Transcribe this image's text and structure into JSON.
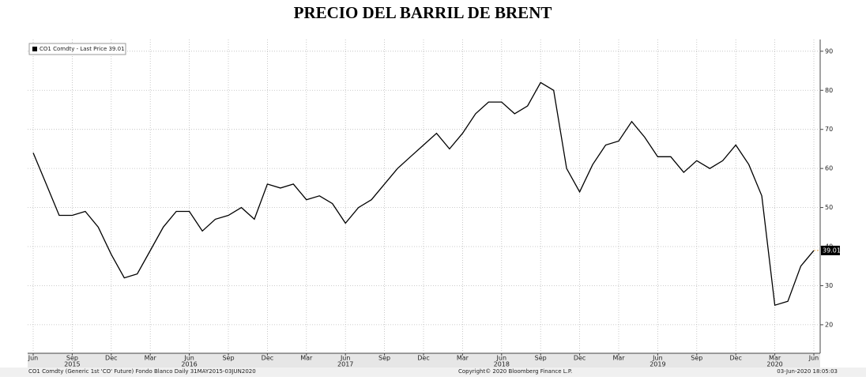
{
  "chart_data": {
    "type": "line",
    "title": "PRECIO DEL BARRIL DE BRENT",
    "x": [
      "2015-06",
      "2015-07",
      "2015-08",
      "2015-09",
      "2015-10",
      "2015-11",
      "2015-12",
      "2016-01",
      "2016-02",
      "2016-03",
      "2016-04",
      "2016-05",
      "2016-06",
      "2016-07",
      "2016-08",
      "2016-09",
      "2016-10",
      "2016-11",
      "2016-12",
      "2017-01",
      "2017-02",
      "2017-03",
      "2017-04",
      "2017-05",
      "2017-06",
      "2017-07",
      "2017-08",
      "2017-09",
      "2017-10",
      "2017-11",
      "2017-12",
      "2018-01",
      "2018-02",
      "2018-03",
      "2018-04",
      "2018-05",
      "2018-06",
      "2018-07",
      "2018-08",
      "2018-09",
      "2018-10",
      "2018-11",
      "2018-12",
      "2019-01",
      "2019-02",
      "2019-03",
      "2019-04",
      "2019-05",
      "2019-06",
      "2019-07",
      "2019-08",
      "2019-09",
      "2019-10",
      "2019-11",
      "2019-12",
      "2020-01",
      "2020-02",
      "2020-03",
      "2020-04",
      "2020-05",
      "2020-06"
    ],
    "series": [
      {
        "name": "CO1 Comdty - Last Price 39.01",
        "color": "#000000",
        "values": [
          64,
          56,
          48,
          48,
          49,
          45,
          38,
          32,
          33,
          39,
          45,
          49,
          49,
          44,
          47,
          48,
          50,
          47,
          56,
          55,
          56,
          52,
          53,
          51,
          46,
          50,
          52,
          56,
          60,
          63,
          66,
          69,
          65,
          69,
          74,
          77,
          77,
          74,
          76,
          82,
          80,
          60,
          54,
          61,
          66,
          67,
          72,
          68,
          63,
          63,
          59,
          62,
          60,
          62,
          66,
          61,
          53,
          25,
          26,
          35,
          39.01
        ]
      }
    ],
    "ylim": [
      12.7,
      93
    ],
    "yticks": [
      20,
      30,
      40,
      50,
      60,
      70,
      80,
      90
    ],
    "xticks": [
      {
        "value": "2015-06",
        "label": "Jun"
      },
      {
        "value": "2015-09",
        "label": "Sep"
      },
      {
        "value": "2015-12",
        "label": "Dec"
      },
      {
        "value": "2016-03",
        "label": "Mar"
      },
      {
        "value": "2016-06",
        "label": "Jun"
      },
      {
        "value": "2016-09",
        "label": "Sep"
      },
      {
        "value": "2016-12",
        "label": "Dec"
      },
      {
        "value": "2017-03",
        "label": "Mar"
      },
      {
        "value": "2017-06",
        "label": "Jun"
      },
      {
        "value": "2017-09",
        "label": "Sep"
      },
      {
        "value": "2017-12",
        "label": "Dec"
      },
      {
        "value": "2018-03",
        "label": "Mar"
      },
      {
        "value": "2018-06",
        "label": "Jun"
      },
      {
        "value": "2018-09",
        "label": "Sep"
      },
      {
        "value": "2018-12",
        "label": "Dec"
      },
      {
        "value": "2019-03",
        "label": "Mar"
      },
      {
        "value": "2019-06",
        "label": "Jun"
      },
      {
        "value": "2019-09",
        "label": "Sep"
      },
      {
        "value": "2019-12",
        "label": "Dec"
      },
      {
        "value": "2020-03",
        "label": "Mar"
      },
      {
        "value": "2020-06",
        "label": "Jun"
      }
    ],
    "year_labels": [
      {
        "value": "2015-09",
        "label": "2015"
      },
      {
        "value": "2016-06",
        "label": "2016"
      },
      {
        "value": "2017-06",
        "label": "2017"
      },
      {
        "value": "2018-06",
        "label": "2018"
      },
      {
        "value": "2019-06",
        "label": "2019"
      },
      {
        "value": "2020-03",
        "label": "2020"
      }
    ],
    "grid": true,
    "legend": "upper left",
    "footer_left": "CO1 Comdty (Generic 1st 'CO' Future) Fondo Blanco  Daily 31MAY2015-03JUN2020",
    "footer_center": "Copyright© 2020 Bloomberg Finance L.P.",
    "footer_right": "03-Jun-2020 18:05:03"
  }
}
